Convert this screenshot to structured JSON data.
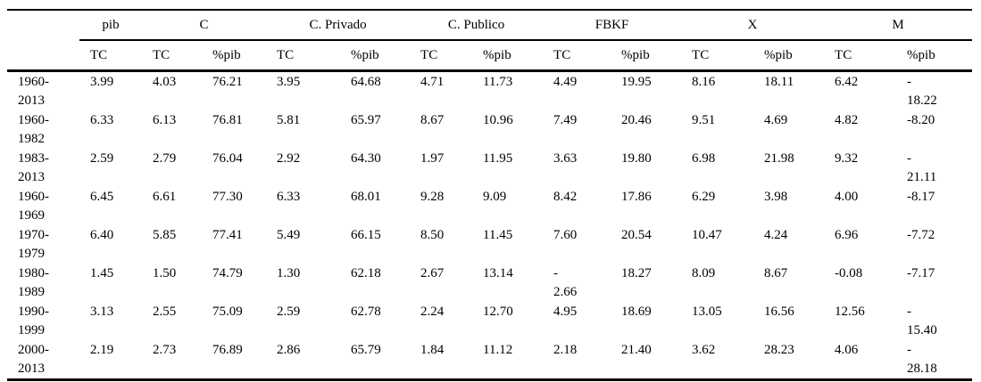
{
  "page": {
    "background": "#ffffff",
    "text_color": "#000000",
    "rule_color": "#000000"
  },
  "table": {
    "column_groups": [
      {
        "label": "",
        "span": 1
      },
      {
        "label": "pib",
        "span": 1
      },
      {
        "label": "C",
        "span": 2
      },
      {
        "label": "C. Privado",
        "span": 2
      },
      {
        "label": "C. Publico",
        "span": 2
      },
      {
        "label": "FBKF",
        "span": 2
      },
      {
        "label": "X",
        "span": 2
      },
      {
        "label": "M",
        "span": 2
      }
    ],
    "sub_headers": [
      "",
      "TC",
      "TC",
      "%pib",
      "TC",
      "%pib",
      "TC",
      "%pib",
      "TC",
      "%pib",
      "TC",
      "%pib",
      "TC",
      "%pib"
    ],
    "rows": [
      {
        "period": "1960-\n2013",
        "values": [
          "3.99",
          "4.03",
          "76.21",
          "3.95",
          "64.68",
          "4.71",
          "11.73",
          "4.49",
          "19.95",
          "8.16",
          "18.11",
          "6.42",
          "-\n18.22"
        ]
      },
      {
        "period": "1960-\n1982",
        "values": [
          "6.33",
          "6.13",
          "76.81",
          "5.81",
          "65.97",
          "8.67",
          "10.96",
          "7.49",
          "20.46",
          "9.51",
          "4.69",
          "4.82",
          "-8.20"
        ]
      },
      {
        "period": "1983-\n2013",
        "values": [
          "2.59",
          "2.79",
          "76.04",
          "2.92",
          "64.30",
          "1.97",
          "11.95",
          "3.63",
          "19.80",
          "6.98",
          "21.98",
          "9.32",
          "-\n21.11"
        ]
      },
      {
        "period": "1960-\n1969",
        "values": [
          "6.45",
          "6.61",
          "77.30",
          "6.33",
          "68.01",
          "9.28",
          "9.09",
          "8.42",
          "17.86",
          "6.29",
          "3.98",
          "4.00",
          "-8.17"
        ]
      },
      {
        "period": "1970-\n1979",
        "values": [
          "6.40",
          "5.85",
          "77.41",
          "5.49",
          "66.15",
          "8.50",
          "11.45",
          "7.60",
          "20.54",
          "10.47",
          "4.24",
          "6.96",
          "-7.72"
        ]
      },
      {
        "period": "1980-\n1989",
        "values": [
          "1.45",
          "1.50",
          "74.79",
          "1.30",
          "62.18",
          "2.67",
          "13.14",
          "-\n2.66",
          "18.27",
          "8.09",
          "8.67",
          "-0.08",
          "-7.17"
        ]
      },
      {
        "period": "1990-\n1999",
        "values": [
          "3.13",
          "2.55",
          "75.09",
          "2.59",
          "62.78",
          "2.24",
          "12.70",
          "4.95",
          "18.69",
          "13.05",
          "16.56",
          "12.56",
          "-\n15.40"
        ]
      },
      {
        "period": "2000-\n2013",
        "values": [
          "2.19",
          "2.73",
          "76.89",
          "2.86",
          "65.79",
          "1.84",
          "11.12",
          "2.18",
          "21.40",
          "3.62",
          "28.23",
          "4.06",
          "-\n28.18"
        ]
      }
    ]
  },
  "layout_note_columns": [
    "period",
    "pib TC",
    "C TC",
    "C %pib",
    "C. Privado TC",
    "C. Privado %pib",
    "C. Publico TC",
    "C. Publico %pib",
    "FBKF TC",
    "FBKF %pib",
    "X TC",
    "X %pib",
    "M TC",
    "M %pib"
  ]
}
